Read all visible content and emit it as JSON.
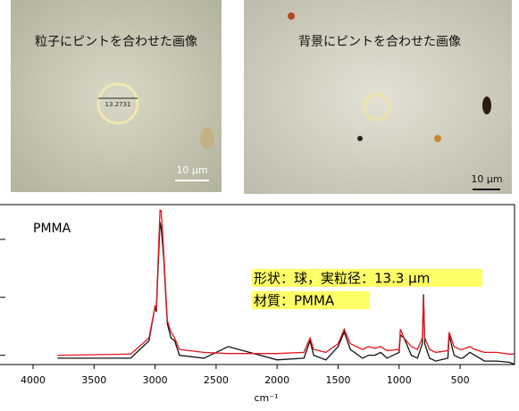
{
  "images": [
    {
      "caption": "粒子にピントを合わせた画像",
      "measure": "13.2731",
      "scale": "10 µm"
    },
    {
      "caption": "背景にピントを合わせた画像",
      "scale": "10 µm"
    }
  ],
  "chart_data": {
    "type": "line",
    "x_label": "cm⁻¹",
    "annotations": [
      "形状：球，実粒径：13.3 µm",
      "材質：PMMA"
    ],
    "x": [
      3800,
      3200,
      3050,
      3000,
      2990,
      2960,
      2950,
      2930,
      2900,
      2870,
      2840,
      2800,
      2600,
      2400,
      2000,
      1780,
      1730,
      1700,
      1600,
      1500,
      1450,
      1400,
      1300,
      1250,
      1200,
      1150,
      1100,
      1000,
      990,
      960,
      900,
      850,
      810,
      800,
      790,
      750,
      700,
      600,
      590,
      550,
      500,
      480,
      420,
      380,
      300,
      200,
      100,
      60
    ],
    "series": [
      {
        "name": "PMMA",
        "color": "#e8141c",
        "values": [
          0,
          0.02,
          0.3,
          0.85,
          0.8,
          2.5,
          2.5,
          1.8,
          0.6,
          0.4,
          0.3,
          0.1,
          0.05,
          0.03,
          0.03,
          0.05,
          0.3,
          0.1,
          0.05,
          0.2,
          0.45,
          0.2,
          0.1,
          0.15,
          0.12,
          0.15,
          0.08,
          0.1,
          0.45,
          0.3,
          0.15,
          0.1,
          0.3,
          1.0,
          0.3,
          0.1,
          0.05,
          0.08,
          0.4,
          0.15,
          0.1,
          0.1,
          0.15,
          0.1,
          0.05,
          0.05,
          0.02,
          0.02
        ]
      },
      {
        "color": "#111111",
        "values": [
          -0.05,
          -0.05,
          0.25,
          0.85,
          0.75,
          2.3,
          2.2,
          1.7,
          0.55,
          0.3,
          0.25,
          0.0,
          -0.05,
          0.15,
          -0.08,
          -0.05,
          0.25,
          0.0,
          -0.08,
          0.15,
          0.4,
          0.1,
          -0.05,
          0.0,
          0.0,
          0.05,
          -0.05,
          0.05,
          0.35,
          0.3,
          0.0,
          -0.05,
          0.2,
          1.05,
          0.2,
          -0.05,
          -0.1,
          -0.05,
          0.35,
          0.0,
          -0.05,
          -0.05,
          0.05,
          0.0,
          -0.1,
          -0.1,
          -0.12,
          -0.15
        ]
      }
    ],
    "xlim": [
      4000,
      60
    ],
    "ylim": [
      -0.16,
      2.6
    ],
    "xticks": [
      4000,
      3500,
      3000,
      2500,
      2000,
      1500,
      1000,
      500
    ],
    "yticks": [
      0,
      1,
      2
    ]
  }
}
